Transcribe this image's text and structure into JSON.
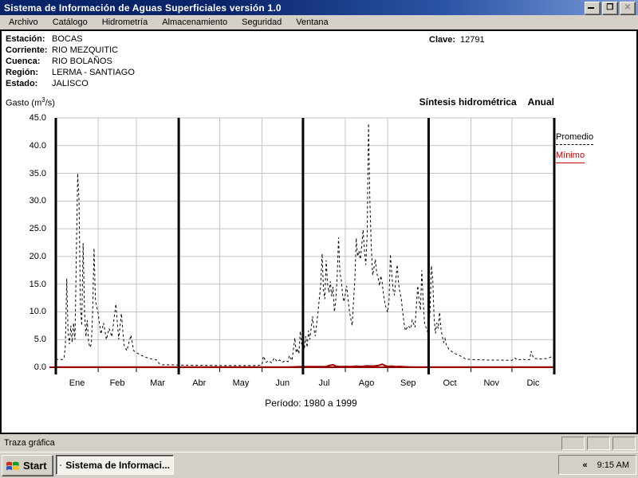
{
  "titlebar": {
    "title": "Sistema de Información de Aguas Superficiales  versión 1.0",
    "restore_glyph": "❐",
    "close_glyph": "✕"
  },
  "menu": {
    "items": [
      "Archivo",
      "Catálogo",
      "Hidrometría",
      "Almacenamiento",
      "Seguridad",
      "Ventana"
    ]
  },
  "info": {
    "rows": [
      {
        "label": "Estación:",
        "value": "BOCAS"
      },
      {
        "label": "Corriente:",
        "value": "RIO MEZQUITIC"
      },
      {
        "label": "Cuenca:",
        "value": "RIO BOLAÑOS"
      },
      {
        "label": "Región:",
        "value": "LERMA - SANTIAGO"
      },
      {
        "label": "Estado:",
        "value": "JALISCO"
      }
    ],
    "clave_label": "Clave:",
    "clave_value": "12791"
  },
  "chart_header": {
    "ylabel_pre": "Gasto (m",
    "ylabel_sup": "3",
    "ylabel_post": "/s)",
    "title": "Síntesis hidrométrica",
    "subtitle": "Anual"
  },
  "period_label": "Período:  1980 a 1999",
  "statusbar": {
    "text": "Traza gráfica"
  },
  "taskbar": {
    "start_label": "Start",
    "task_label": "Sistema de Informaci...",
    "tray_collapse": "«",
    "clock": "9:15 AM"
  },
  "chart_data": {
    "type": "line",
    "title": "Síntesis hidrométrica Anual",
    "ylabel": "Gasto (m3/s)",
    "xlabel": "Período: 1980 a 1999",
    "ylim": [
      0,
      45
    ],
    "y_tick_step": 5,
    "y_ticks": [
      "45.0",
      "40.0",
      "35.0",
      "30.0",
      "25.0",
      "20.0",
      "15.0",
      "10.0",
      "5.0",
      "0.0"
    ],
    "x_categories": [
      "Ene",
      "Feb",
      "Mar",
      "Abr",
      "May",
      "Jun",
      "Jul",
      "Ago",
      "Sep",
      "Oct",
      "Nov",
      "Dic"
    ],
    "month_days": [
      31,
      28,
      31,
      30,
      31,
      30,
      31,
      31,
      30,
      31,
      30,
      31
    ],
    "x_unit": "day_of_year",
    "grid": true,
    "gridline_color": "#c4c4c4",
    "quarter_separator_days": [
      0,
      90,
      181,
      273,
      365
    ],
    "zero_line_color": "#990000",
    "legend_position": "right-top",
    "series": [
      {
        "name": "Promedio",
        "color": "#000000",
        "style": "dashed",
        "points": [
          [
            0,
            1.4
          ],
          [
            5,
            1.4
          ],
          [
            6,
            1.6
          ],
          [
            7,
            4
          ],
          [
            8,
            16
          ],
          [
            9,
            6
          ],
          [
            10,
            4.2
          ],
          [
            11,
            7.5
          ],
          [
            12,
            4.5
          ],
          [
            13,
            8
          ],
          [
            14,
            5
          ],
          [
            15,
            20
          ],
          [
            16,
            35
          ],
          [
            17,
            30
          ],
          [
            18,
            11
          ],
          [
            19,
            7.5
          ],
          [
            20,
            22.4
          ],
          [
            21,
            10
          ],
          [
            22,
            5.5
          ],
          [
            23,
            8.5
          ],
          [
            24,
            4.5
          ],
          [
            25,
            3.6
          ],
          [
            26,
            4.2
          ],
          [
            27,
            10
          ],
          [
            28,
            21.5
          ],
          [
            29,
            12
          ],
          [
            31,
            9.7
          ],
          [
            33,
            6
          ],
          [
            35,
            8
          ],
          [
            37,
            5
          ],
          [
            39,
            7
          ],
          [
            41,
            5.5
          ],
          [
            44,
            11.4
          ],
          [
            46,
            5
          ],
          [
            48,
            9.7
          ],
          [
            50,
            4
          ],
          [
            52,
            3
          ],
          [
            55,
            5.8
          ],
          [
            57,
            3
          ],
          [
            60,
            2.5
          ],
          [
            63,
            2.1
          ],
          [
            66,
            1.8
          ],
          [
            70,
            1.5
          ],
          [
            74,
            1.3
          ],
          [
            76,
            0.6
          ],
          [
            78,
            0.45
          ],
          [
            85,
            0.45
          ],
          [
            90,
            0.4
          ],
          [
            100,
            0.35
          ],
          [
            110,
            0.33
          ],
          [
            120,
            0.3
          ],
          [
            135,
            0.3
          ],
          [
            148,
            0.3
          ],
          [
            151,
            0.5
          ],
          [
            152,
            2
          ],
          [
            154,
            0.9
          ],
          [
            156,
            1.2
          ],
          [
            158,
            0.8
          ],
          [
            160,
            1.7
          ],
          [
            162,
            1
          ],
          [
            164,
            1.3
          ],
          [
            166,
            0.9
          ],
          [
            168,
            1.2
          ],
          [
            170,
            1
          ],
          [
            171,
            2.1
          ],
          [
            173,
            1.2
          ],
          [
            175,
            5.3
          ],
          [
            176,
            2.6
          ],
          [
            177,
            3.4
          ],
          [
            178,
            2.4
          ],
          [
            179,
            6.5
          ],
          [
            180,
            4.2
          ],
          [
            181,
            4
          ],
          [
            182,
            3.2
          ],
          [
            183,
            5.6
          ],
          [
            184,
            3.6
          ],
          [
            185,
            6.6
          ],
          [
            186,
            5
          ],
          [
            188,
            9.2
          ],
          [
            189,
            7
          ],
          [
            190,
            5.6
          ],
          [
            192,
            10
          ],
          [
            194,
            15
          ],
          [
            195,
            20.5
          ],
          [
            196,
            14
          ],
          [
            197,
            12.3
          ],
          [
            198,
            19.3
          ],
          [
            199,
            15
          ],
          [
            200,
            13.5
          ],
          [
            201,
            15.5
          ],
          [
            202,
            12.8
          ],
          [
            203,
            14.5
          ],
          [
            204,
            10
          ],
          [
            205,
            12
          ],
          [
            206,
            16
          ],
          [
            207,
            23.4
          ],
          [
            208,
            17
          ],
          [
            209,
            15.8
          ],
          [
            210,
            13
          ],
          [
            211,
            11.8
          ],
          [
            213,
            14.7
          ],
          [
            215,
            10
          ],
          [
            217,
            7.5
          ],
          [
            218,
            12
          ],
          [
            219,
            16
          ],
          [
            220,
            23.3
          ],
          [
            221,
            20
          ],
          [
            222,
            21
          ],
          [
            223,
            19.5
          ],
          [
            224,
            22
          ],
          [
            225,
            24.8
          ],
          [
            226,
            21
          ],
          [
            227,
            18.5
          ],
          [
            228,
            24
          ],
          [
            229,
            44
          ],
          [
            230,
            30
          ],
          [
            231,
            21.9
          ],
          [
            232,
            16.6
          ],
          [
            233,
            18
          ],
          [
            234,
            19.5
          ],
          [
            235,
            17
          ],
          [
            236,
            16.2
          ],
          [
            237,
            14.7
          ],
          [
            238,
            16.5
          ],
          [
            239,
            15.3
          ],
          [
            240,
            13
          ],
          [
            241,
            11.5
          ],
          [
            242,
            10.5
          ],
          [
            243,
            9.9
          ],
          [
            244,
            12
          ],
          [
            245,
            20.4
          ],
          [
            246,
            17
          ],
          [
            247,
            14
          ],
          [
            248,
            13
          ],
          [
            249,
            16
          ],
          [
            250,
            18.5
          ],
          [
            251,
            15
          ],
          [
            252,
            13.5
          ],
          [
            253,
            12.3
          ],
          [
            254,
            10
          ],
          [
            255,
            8
          ],
          [
            256,
            6.6
          ],
          [
            258,
            7.5
          ],
          [
            260,
            7
          ],
          [
            261,
            8.5
          ],
          [
            263,
            7.2
          ],
          [
            265,
            14.7
          ],
          [
            266,
            12
          ],
          [
            267,
            10.3
          ],
          [
            268,
            17.5
          ],
          [
            269,
            12
          ],
          [
            270,
            8
          ],
          [
            272,
            6.5
          ],
          [
            273,
            7
          ],
          [
            274,
            10
          ],
          [
            275,
            18.3
          ],
          [
            276,
            16
          ],
          [
            277,
            9
          ],
          [
            278,
            6.1
          ],
          [
            279,
            8
          ],
          [
            280,
            7
          ],
          [
            281,
            9.9
          ],
          [
            282,
            7
          ],
          [
            283,
            5.5
          ],
          [
            284,
            4.5
          ],
          [
            285,
            5.2
          ],
          [
            286,
            4
          ],
          [
            288,
            3.2
          ],
          [
            290,
            2.8
          ],
          [
            292,
            2.5
          ],
          [
            295,
            2.2
          ],
          [
            298,
            1.8
          ],
          [
            300,
            1.5
          ],
          [
            304,
            1.4
          ],
          [
            310,
            1.35
          ],
          [
            318,
            1.3
          ],
          [
            326,
            1.3
          ],
          [
            334,
            1.25
          ],
          [
            336,
            1.7
          ],
          [
            338,
            1.3
          ],
          [
            342,
            1.5
          ],
          [
            344,
            1.3
          ],
          [
            347,
            1.4
          ],
          [
            348,
            2.9
          ],
          [
            349,
            2.2
          ],
          [
            350,
            1.6
          ],
          [
            355,
            1.5
          ],
          [
            360,
            1.6
          ],
          [
            363,
            1.9
          ],
          [
            365,
            1.7
          ]
        ]
      },
      {
        "name": "Mínimo",
        "color": "#990000",
        "style": "solid",
        "points": [
          [
            0,
            0.05
          ],
          [
            60,
            0.05
          ],
          [
            120,
            0.05
          ],
          [
            170,
            0.05
          ],
          [
            180,
            0.1
          ],
          [
            190,
            0.1
          ],
          [
            198,
            0.12
          ],
          [
            200,
            0.3
          ],
          [
            203,
            0.45
          ],
          [
            205,
            0.2
          ],
          [
            208,
            0.1
          ],
          [
            212,
            0.15
          ],
          [
            216,
            0.1
          ],
          [
            220,
            0.2
          ],
          [
            224,
            0.15
          ],
          [
            228,
            0.25
          ],
          [
            232,
            0.2
          ],
          [
            236,
            0.3
          ],
          [
            239,
            0.55
          ],
          [
            241,
            0.3
          ],
          [
            243,
            0.15
          ],
          [
            246,
            0.2
          ],
          [
            249,
            0.1
          ],
          [
            252,
            0.15
          ],
          [
            255,
            0.08
          ],
          [
            260,
            0.05
          ],
          [
            273,
            0.05
          ],
          [
            300,
            0.05
          ],
          [
            330,
            0.05
          ],
          [
            365,
            0.05
          ]
        ]
      }
    ],
    "legend": [
      {
        "label": "Promedio",
        "color": "#000000",
        "line": "dashed"
      },
      {
        "label": "Mínimo",
        "color": "#cc0000",
        "line": "solid"
      }
    ]
  }
}
